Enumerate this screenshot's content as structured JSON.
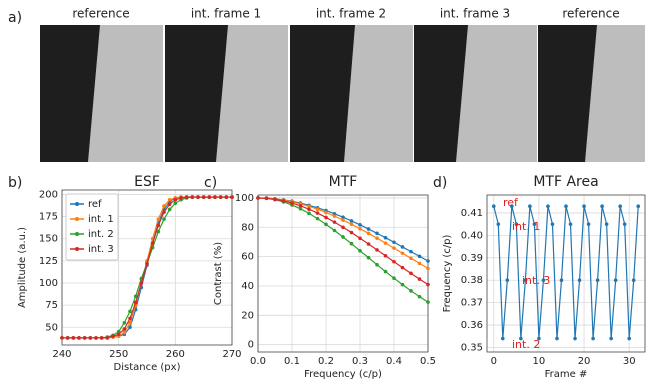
{
  "panel_a": {
    "label": "a)",
    "frames": [
      "reference",
      "int. frame 1",
      "int. frame 2",
      "int. frame 3",
      "reference"
    ]
  },
  "chart_data": [
    {
      "type": "line",
      "panel_label": "b)",
      "title": "ESF",
      "x_label": "Distance (px)",
      "y_label": "Amplitude (a.u.)",
      "x": [
        240,
        241,
        242,
        243,
        244,
        245,
        246,
        247,
        248,
        249,
        250,
        251,
        252,
        253,
        254,
        255,
        256,
        257,
        258,
        259,
        260,
        261,
        262,
        263,
        264,
        265,
        266,
        267,
        268,
        269,
        270
      ],
      "xlim": [
        240,
        270
      ],
      "xticks": [
        240,
        250,
        260,
        270
      ],
      "ylim": [
        30,
        205
      ],
      "yticks": [
        50,
        75,
        100,
        125,
        150,
        175,
        200
      ],
      "grid": true,
      "legend": "upper left",
      "series": [
        {
          "name": "ref",
          "color": "#1f77b4",
          "values": [
            38,
            38,
            38,
            38,
            38,
            38,
            38,
            38,
            38,
            39,
            40,
            42,
            50,
            70,
            95,
            120,
            145,
            168,
            183,
            192,
            196,
            197,
            197,
            197,
            197,
            197,
            197,
            197,
            197,
            197,
            197
          ]
        },
        {
          "name": "int. 1",
          "color": "#ff7f0e",
          "values": [
            38,
            38,
            38,
            38,
            38,
            38,
            38,
            38,
            38,
            39,
            40,
            44,
            55,
            75,
            100,
            125,
            150,
            172,
            187,
            194,
            196,
            197,
            197,
            197,
            197,
            197,
            197,
            197,
            197,
            197,
            197
          ]
        },
        {
          "name": "int. 2",
          "color": "#2ca02c",
          "values": [
            38,
            38,
            38,
            38,
            38,
            38,
            38,
            38,
            39,
            41,
            45,
            55,
            68,
            85,
            105,
            122,
            140,
            158,
            172,
            183,
            190,
            194,
            196,
            197,
            197,
            197,
            197,
            197,
            197,
            197,
            197
          ]
        },
        {
          "name": "int. 3",
          "color": "#d62728",
          "values": [
            38,
            38,
            38,
            38,
            38,
            38,
            38,
            38,
            38,
            40,
            42,
            48,
            60,
            78,
            100,
            122,
            145,
            165,
            180,
            189,
            194,
            196,
            197,
            197,
            197,
            197,
            197,
            197,
            197,
            197,
            197
          ]
        }
      ]
    },
    {
      "type": "line",
      "panel_label": "c)",
      "title": "MTF",
      "x_label": "Frequency (c/p)",
      "y_label": "Contrast (%)",
      "x": [
        0,
        0.025,
        0.05,
        0.075,
        0.1,
        0.125,
        0.15,
        0.175,
        0.2,
        0.225,
        0.25,
        0.275,
        0.3,
        0.325,
        0.35,
        0.375,
        0.4,
        0.425,
        0.45,
        0.475,
        0.5
      ],
      "xlim": [
        0,
        0.5
      ],
      "xticks": [
        {
          "value": 0,
          "label": "0.0"
        },
        0.1,
        0.2,
        0.3,
        0.4,
        0.5
      ],
      "ylim": [
        -5,
        102
      ],
      "yticks": [
        0,
        20,
        40,
        60,
        80,
        100
      ],
      "grid": true,
      "series": [
        {
          "color": "#1f77b4",
          "values": [
            100,
            99.9,
            99.4,
            98.7,
            97.8,
            96.5,
            95.0,
            93.3,
            91.4,
            89.2,
            86.9,
            84.3,
            81.7,
            78.8,
            75.9,
            72.9,
            69.8,
            66.6,
            63.4,
            60.2,
            57.0
          ]
        },
        {
          "color": "#ff7f0e",
          "values": [
            100,
            99.8,
            99.3,
            98.5,
            97.4,
            96.0,
            94.3,
            92.3,
            90.1,
            87.6,
            84.9,
            82.1,
            79.0,
            75.9,
            72.6,
            69.2,
            65.8,
            62.3,
            58.9,
            55.4,
            52.0
          ]
        },
        {
          "color": "#2ca02c",
          "values": [
            100,
            99.7,
            98.8,
            97.3,
            95.2,
            92.6,
            89.5,
            85.9,
            82.0,
            77.8,
            73.4,
            68.8,
            64.0,
            59.3,
            54.5,
            49.8,
            45.3,
            40.9,
            36.7,
            32.7,
            29.0
          ]
        },
        {
          "color": "#d62728",
          "values": [
            100,
            99.8,
            99.1,
            98.0,
            96.5,
            94.6,
            92.3,
            89.7,
            86.7,
            83.5,
            80.0,
            76.4,
            72.5,
            68.6,
            64.6,
            60.6,
            56.5,
            52.5,
            48.6,
            44.7,
            41.0
          ]
        }
      ]
    },
    {
      "type": "line",
      "panel_label": "d)",
      "title": "MTF Area",
      "x_label": "Frame #",
      "y_label": "Frequency (c/p)",
      "x": [
        0,
        1,
        2,
        3,
        4,
        5,
        6,
        7,
        8,
        9,
        10,
        11,
        12,
        13,
        14,
        15,
        16,
        17,
        18,
        19,
        20,
        21,
        22,
        23,
        24,
        25,
        26,
        27,
        28,
        29,
        30,
        31,
        32
      ],
      "xlim": [
        -1.5,
        33.5
      ],
      "xticks": [
        0,
        10,
        20,
        30
      ],
      "ylim": [
        0.348,
        0.418
      ],
      "yticks": [
        0.35,
        0.36,
        0.37,
        0.38,
        0.39,
        {
          "value": 0.4,
          "label": "0.40"
        },
        0.41
      ],
      "grid": true,
      "annotations": [
        "ref",
        "int. 1",
        "int. 3",
        "int. 2"
      ],
      "series": [
        {
          "color": "#1f77b4",
          "values": [
            0.413,
            0.405,
            0.354,
            0.38,
            0.413,
            0.405,
            0.354,
            0.38,
            0.413,
            0.405,
            0.354,
            0.38,
            0.413,
            0.405,
            0.354,
            0.38,
            0.413,
            0.405,
            0.354,
            0.38,
            0.413,
            0.405,
            0.354,
            0.38,
            0.413,
            0.405,
            0.354,
            0.38,
            0.413,
            0.405,
            0.354,
            0.38,
            0.413
          ]
        }
      ]
    }
  ]
}
